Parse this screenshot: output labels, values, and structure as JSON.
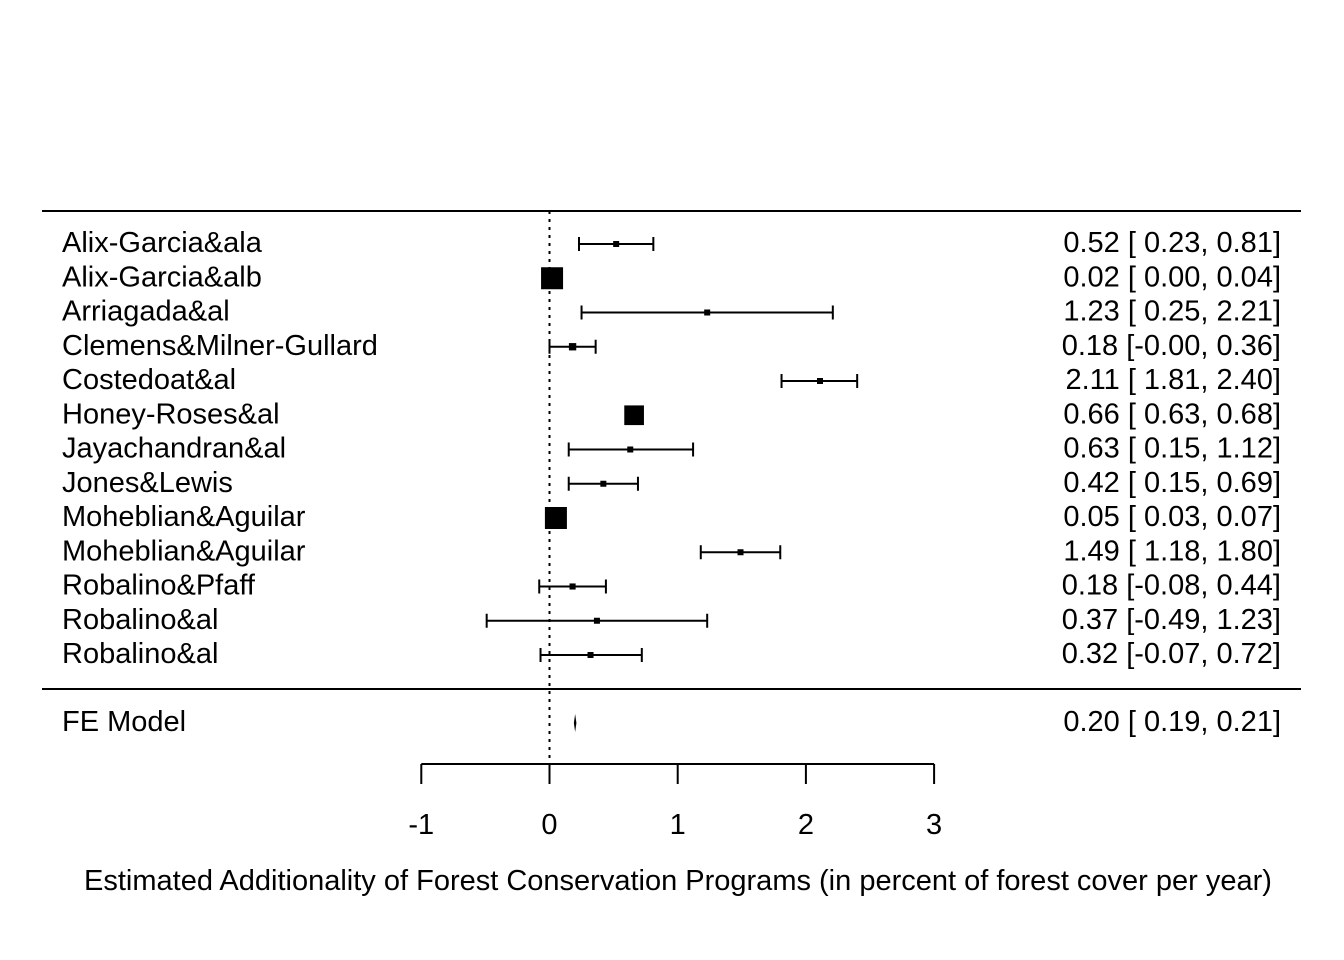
{
  "chart_data": {
    "type": "forest",
    "xlabel": "Estimated Additionality of Forest Conservation Programs (in percent of forest cover per year)",
    "xlim": [
      -1,
      3
    ],
    "xticks": [
      "-1",
      "0",
      "1",
      "2",
      "3"
    ],
    "reference_line": 0,
    "studies": [
      {
        "label": "Alix-Garcia&ala",
        "estimate": 0.52,
        "ci_low": 0.23,
        "ci_high": 0.81,
        "text": "0.52 [ 0.23, 0.81]"
      },
      {
        "label": "Alix-Garcia&alb",
        "estimate": 0.02,
        "ci_low": 0.0,
        "ci_high": 0.04,
        "text": "0.02 [ 0.00, 0.04]"
      },
      {
        "label": "Arriagada&al",
        "estimate": 1.23,
        "ci_low": 0.25,
        "ci_high": 2.21,
        "text": "1.23 [ 0.25, 2.21]"
      },
      {
        "label": "Clemens&Milner-Gullard",
        "estimate": 0.18,
        "ci_low": -0.0,
        "ci_high": 0.36,
        "text": "0.18 [-0.00, 0.36]"
      },
      {
        "label": "Costedoat&al",
        "estimate": 2.11,
        "ci_low": 1.81,
        "ci_high": 2.4,
        "text": "2.11 [ 1.81, 2.40]"
      },
      {
        "label": "Honey-Roses&al",
        "estimate": 0.66,
        "ci_low": 0.63,
        "ci_high": 0.68,
        "text": "0.66 [ 0.63, 0.68]"
      },
      {
        "label": "Jayachandran&al",
        "estimate": 0.63,
        "ci_low": 0.15,
        "ci_high": 1.12,
        "text": "0.63 [ 0.15, 1.12]"
      },
      {
        "label": "Jones&Lewis",
        "estimate": 0.42,
        "ci_low": 0.15,
        "ci_high": 0.69,
        "text": "0.42 [ 0.15, 0.69]"
      },
      {
        "label": "Moheblian&Aguilar",
        "estimate": 0.05,
        "ci_low": 0.03,
        "ci_high": 0.07,
        "text": "0.05 [ 0.03, 0.07]"
      },
      {
        "label": "Moheblian&Aguilar",
        "estimate": 1.49,
        "ci_low": 1.18,
        "ci_high": 1.8,
        "text": "1.49 [ 1.18, 1.80]"
      },
      {
        "label": "Robalino&Pfaff",
        "estimate": 0.18,
        "ci_low": -0.08,
        "ci_high": 0.44,
        "text": "0.18 [-0.08, 0.44]"
      },
      {
        "label": "Robalino&al",
        "estimate": 0.37,
        "ci_low": -0.49,
        "ci_high": 1.23,
        "text": "0.37 [-0.49, 1.23]"
      },
      {
        "label": "Robalino&al",
        "estimate": 0.32,
        "ci_low": -0.07,
        "ci_high": 0.72,
        "text": "0.32 [-0.07, 0.72]"
      }
    ],
    "summary": {
      "label": "FE Model",
      "estimate": 0.2,
      "ci_low": 0.19,
      "ci_high": 0.21,
      "text": "0.20 [ 0.19, 0.21]"
    }
  }
}
